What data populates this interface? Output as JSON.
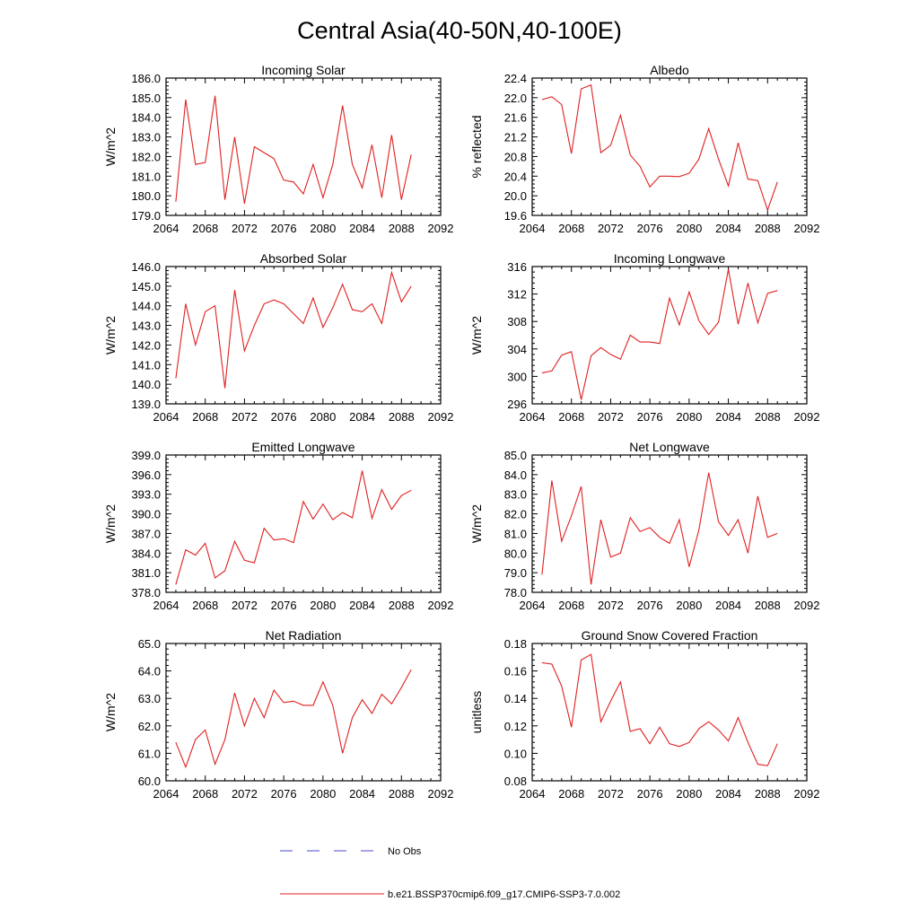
{
  "figure": {
    "title": "Central Asia(40-50N,40-100E)",
    "legend": [
      {
        "label": "No Obs",
        "style": "dashed",
        "color": "#4a4ad0"
      },
      {
        "label": "b.e21.BSSP370cmip6.f09_g17.CMIP6-SSP3-7.0.002",
        "style": "solid",
        "color": "#e02020"
      }
    ]
  },
  "chart_data": [
    {
      "type": "line",
      "title": "Incoming Solar",
      "xlabel": "",
      "ylabel": "W/m^2",
      "xlim": [
        2064,
        2092
      ],
      "ylim": [
        179.0,
        186.0
      ],
      "xticks": [
        2064,
        2068,
        2072,
        2076,
        2080,
        2084,
        2088,
        2092
      ],
      "yticks": [
        "179.0",
        "180.0",
        "181.0",
        "182.0",
        "183.0",
        "184.0",
        "185.0",
        "186.0"
      ],
      "series": [
        {
          "name": "b.e21.BSSP370cmip6.f09_g17.CMIP6-SSP3-7.0.002",
          "color": "#e02020",
          "x": [
            2065,
            2066,
            2067,
            2068,
            2069,
            2070,
            2071,
            2072,
            2073,
            2074,
            2075,
            2076,
            2077,
            2078,
            2079,
            2080,
            2081,
            2082,
            2083,
            2084,
            2085,
            2086,
            2087,
            2088,
            2089
          ],
          "values": [
            179.7,
            184.9,
            181.6,
            181.7,
            185.1,
            179.8,
            183.0,
            179.6,
            182.5,
            182.2,
            181.9,
            180.8,
            180.7,
            180.1,
            181.6,
            179.9,
            181.6,
            184.6,
            181.6,
            180.4,
            182.6,
            179.9,
            183.1,
            179.8,
            182.1
          ]
        }
      ]
    },
    {
      "type": "line",
      "title": "Albedo",
      "xlabel": "",
      "ylabel": "% reflected",
      "xlim": [
        2064,
        2092
      ],
      "ylim": [
        19.6,
        22.4
      ],
      "xticks": [
        2064,
        2068,
        2072,
        2076,
        2080,
        2084,
        2088,
        2092
      ],
      "yticks": [
        "19.6",
        "20.0",
        "20.4",
        "20.8",
        "21.2",
        "21.6",
        "22.0",
        "22.4"
      ],
      "series": [
        {
          "name": "b.e21.BSSP370cmip6.f09_g17.CMIP6-SSP3-7.0.002",
          "color": "#e02020",
          "x": [
            2065,
            2066,
            2067,
            2068,
            2069,
            2070,
            2071,
            2072,
            2073,
            2074,
            2075,
            2076,
            2077,
            2078,
            2079,
            2080,
            2081,
            2082,
            2083,
            2084,
            2085,
            2086,
            2087,
            2088,
            2089
          ],
          "values": [
            21.96,
            22.02,
            21.86,
            20.86,
            22.18,
            22.26,
            20.88,
            21.03,
            21.64,
            20.83,
            20.6,
            20.18,
            20.4,
            20.4,
            20.39,
            20.46,
            20.75,
            21.37,
            20.75,
            20.2,
            21.08,
            20.34,
            20.31,
            19.71,
            20.28
          ]
        }
      ]
    },
    {
      "type": "line",
      "title": "Absorbed Solar",
      "xlabel": "",
      "ylabel": "W/m^2",
      "xlim": [
        2064,
        2092
      ],
      "ylim": [
        139.0,
        146.0
      ],
      "xticks": [
        2064,
        2068,
        2072,
        2076,
        2080,
        2084,
        2088,
        2092
      ],
      "yticks": [
        "139.0",
        "140.0",
        "141.0",
        "142.0",
        "143.0",
        "144.0",
        "145.0",
        "146.0"
      ],
      "series": [
        {
          "name": "b.e21.BSSP370cmip6.f09_g17.CMIP6-SSP3-7.0.002",
          "color": "#e02020",
          "x": [
            2065,
            2066,
            2067,
            2068,
            2069,
            2070,
            2071,
            2072,
            2073,
            2074,
            2075,
            2076,
            2077,
            2078,
            2079,
            2080,
            2081,
            2082,
            2083,
            2084,
            2085,
            2086,
            2087,
            2088,
            2089
          ],
          "values": [
            140.3,
            144.1,
            142.0,
            143.7,
            144.0,
            139.8,
            144.8,
            141.7,
            143.0,
            144.1,
            144.3,
            144.1,
            143.6,
            143.1,
            144.4,
            142.9,
            143.9,
            145.1,
            143.8,
            143.7,
            144.1,
            143.1,
            145.7,
            144.2,
            145.0
          ]
        }
      ]
    },
    {
      "type": "line",
      "title": "Incoming Longwave",
      "xlabel": "",
      "ylabel": "W/m^2",
      "xlim": [
        2064,
        2092
      ],
      "ylim": [
        296,
        316
      ],
      "xticks": [
        2064,
        2068,
        2072,
        2076,
        2080,
        2084,
        2088,
        2092
      ],
      "yticks": [
        "296",
        "300",
        "304",
        "308",
        "312",
        "316"
      ],
      "series": [
        {
          "name": "b.e21.BSSP370cmip6.f09_g17.CMIP6-SSP3-7.0.002",
          "color": "#e02020",
          "x": [
            2065,
            2066,
            2067,
            2068,
            2069,
            2070,
            2071,
            2072,
            2073,
            2074,
            2075,
            2076,
            2077,
            2078,
            2079,
            2080,
            2081,
            2082,
            2083,
            2084,
            2085,
            2086,
            2087,
            2088,
            2089
          ],
          "values": [
            300.5,
            300.8,
            303.1,
            303.6,
            296.6,
            303.0,
            304.2,
            303.2,
            302.5,
            306.0,
            305.0,
            305.0,
            304.8,
            311.4,
            307.5,
            312.3,
            308.1,
            306.1,
            307.9,
            315.6,
            307.6,
            313.6,
            307.8,
            312.1,
            312.5
          ]
        }
      ]
    },
    {
      "type": "line",
      "title": "Emitted Longwave",
      "xlabel": "",
      "ylabel": "W/m^2",
      "xlim": [
        2064,
        2092
      ],
      "ylim": [
        378.0,
        399.0
      ],
      "xticks": [
        2064,
        2068,
        2072,
        2076,
        2080,
        2084,
        2088,
        2092
      ],
      "yticks": [
        "378.0",
        "381.0",
        "384.0",
        "387.0",
        "390.0",
        "393.0",
        "396.0",
        "399.0"
      ],
      "series": [
        {
          "name": "b.e21.BSSP370cmip6.f09_g17.CMIP6-SSP3-7.0.002",
          "color": "#e02020",
          "x": [
            2065,
            2066,
            2067,
            2068,
            2069,
            2070,
            2071,
            2072,
            2073,
            2074,
            2075,
            2076,
            2077,
            2078,
            2079,
            2080,
            2081,
            2082,
            2083,
            2084,
            2085,
            2086,
            2087,
            2088,
            2089
          ],
          "values": [
            379.2,
            384.5,
            383.7,
            385.5,
            380.2,
            381.3,
            385.8,
            382.9,
            382.5,
            387.8,
            386.0,
            386.2,
            385.6,
            391.9,
            389.2,
            391.5,
            389.1,
            390.2,
            389.4,
            396.6,
            389.3,
            393.7,
            390.7,
            392.8,
            393.6
          ]
        }
      ]
    },
    {
      "type": "line",
      "title": "Net Longwave",
      "xlabel": "",
      "ylabel": "W/m^2",
      "xlim": [
        2064,
        2092
      ],
      "ylim": [
        78.0,
        85.0
      ],
      "xticks": [
        2064,
        2068,
        2072,
        2076,
        2080,
        2084,
        2088,
        2092
      ],
      "yticks": [
        "78.0",
        "79.0",
        "80.0",
        "81.0",
        "82.0",
        "83.0",
        "84.0",
        "85.0"
      ],
      "series": [
        {
          "name": "b.e21.BSSP370cmip6.f09_g17.CMIP6-SSP3-7.0.002",
          "color": "#e02020",
          "x": [
            2065,
            2066,
            2067,
            2068,
            2069,
            2070,
            2071,
            2072,
            2073,
            2074,
            2075,
            2076,
            2077,
            2078,
            2079,
            2080,
            2081,
            2082,
            2083,
            2084,
            2085,
            2086,
            2087,
            2088,
            2089
          ],
          "values": [
            78.9,
            83.7,
            80.6,
            81.9,
            83.4,
            78.4,
            81.7,
            79.8,
            80.0,
            81.8,
            81.1,
            81.3,
            80.8,
            80.5,
            81.7,
            79.3,
            81.2,
            84.1,
            81.6,
            80.9,
            81.7,
            80.0,
            82.9,
            80.8,
            81.0
          ]
        }
      ]
    },
    {
      "type": "line",
      "title": "Net Radiation",
      "xlabel": "",
      "ylabel": "W/m^2",
      "xlim": [
        2064,
        2092
      ],
      "ylim": [
        60.0,
        65.0
      ],
      "xticks": [
        2064,
        2068,
        2072,
        2076,
        2080,
        2084,
        2088,
        2092
      ],
      "yticks": [
        "60.0",
        "61.0",
        "62.0",
        "63.0",
        "64.0",
        "65.0"
      ],
      "series": [
        {
          "name": "b.e21.BSSP370cmip6.f09_g17.CMIP6-SSP3-7.0.002",
          "color": "#e02020",
          "x": [
            2065,
            2066,
            2067,
            2068,
            2069,
            2070,
            2071,
            2072,
            2073,
            2074,
            2075,
            2076,
            2077,
            2078,
            2079,
            2080,
            2081,
            2082,
            2083,
            2084,
            2085,
            2086,
            2087,
            2088,
            2089
          ],
          "values": [
            61.4,
            60.5,
            61.5,
            61.85,
            60.6,
            61.5,
            63.2,
            62.0,
            63.0,
            62.3,
            63.3,
            62.85,
            62.9,
            62.75,
            62.75,
            63.6,
            62.75,
            61.0,
            62.3,
            62.95,
            62.45,
            63.15,
            62.8,
            63.4,
            64.05
          ]
        }
      ]
    },
    {
      "type": "line",
      "title": "Ground Snow Covered Fraction",
      "xlabel": "",
      "ylabel": "unitless",
      "xlim": [
        2064,
        2092
      ],
      "ylim": [
        0.08,
        0.18
      ],
      "xticks": [
        2064,
        2068,
        2072,
        2076,
        2080,
        2084,
        2088,
        2092
      ],
      "yticks": [
        "0.08",
        "0.10",
        "0.12",
        "0.14",
        "0.16",
        "0.18"
      ],
      "series": [
        {
          "name": "b.e21.BSSP370cmip6.f09_g17.CMIP6-SSP3-7.0.002",
          "color": "#e02020",
          "x": [
            2065,
            2066,
            2067,
            2068,
            2069,
            2070,
            2071,
            2072,
            2073,
            2074,
            2075,
            2076,
            2077,
            2078,
            2079,
            2080,
            2081,
            2082,
            2083,
            2084,
            2085,
            2086,
            2087,
            2088,
            2089
          ],
          "values": [
            0.166,
            0.165,
            0.149,
            0.119,
            0.168,
            0.172,
            0.123,
            0.138,
            0.152,
            0.116,
            0.118,
            0.107,
            0.119,
            0.107,
            0.105,
            0.108,
            0.118,
            0.123,
            0.117,
            0.109,
            0.126,
            0.108,
            0.092,
            0.091,
            0.107
          ]
        }
      ]
    }
  ]
}
